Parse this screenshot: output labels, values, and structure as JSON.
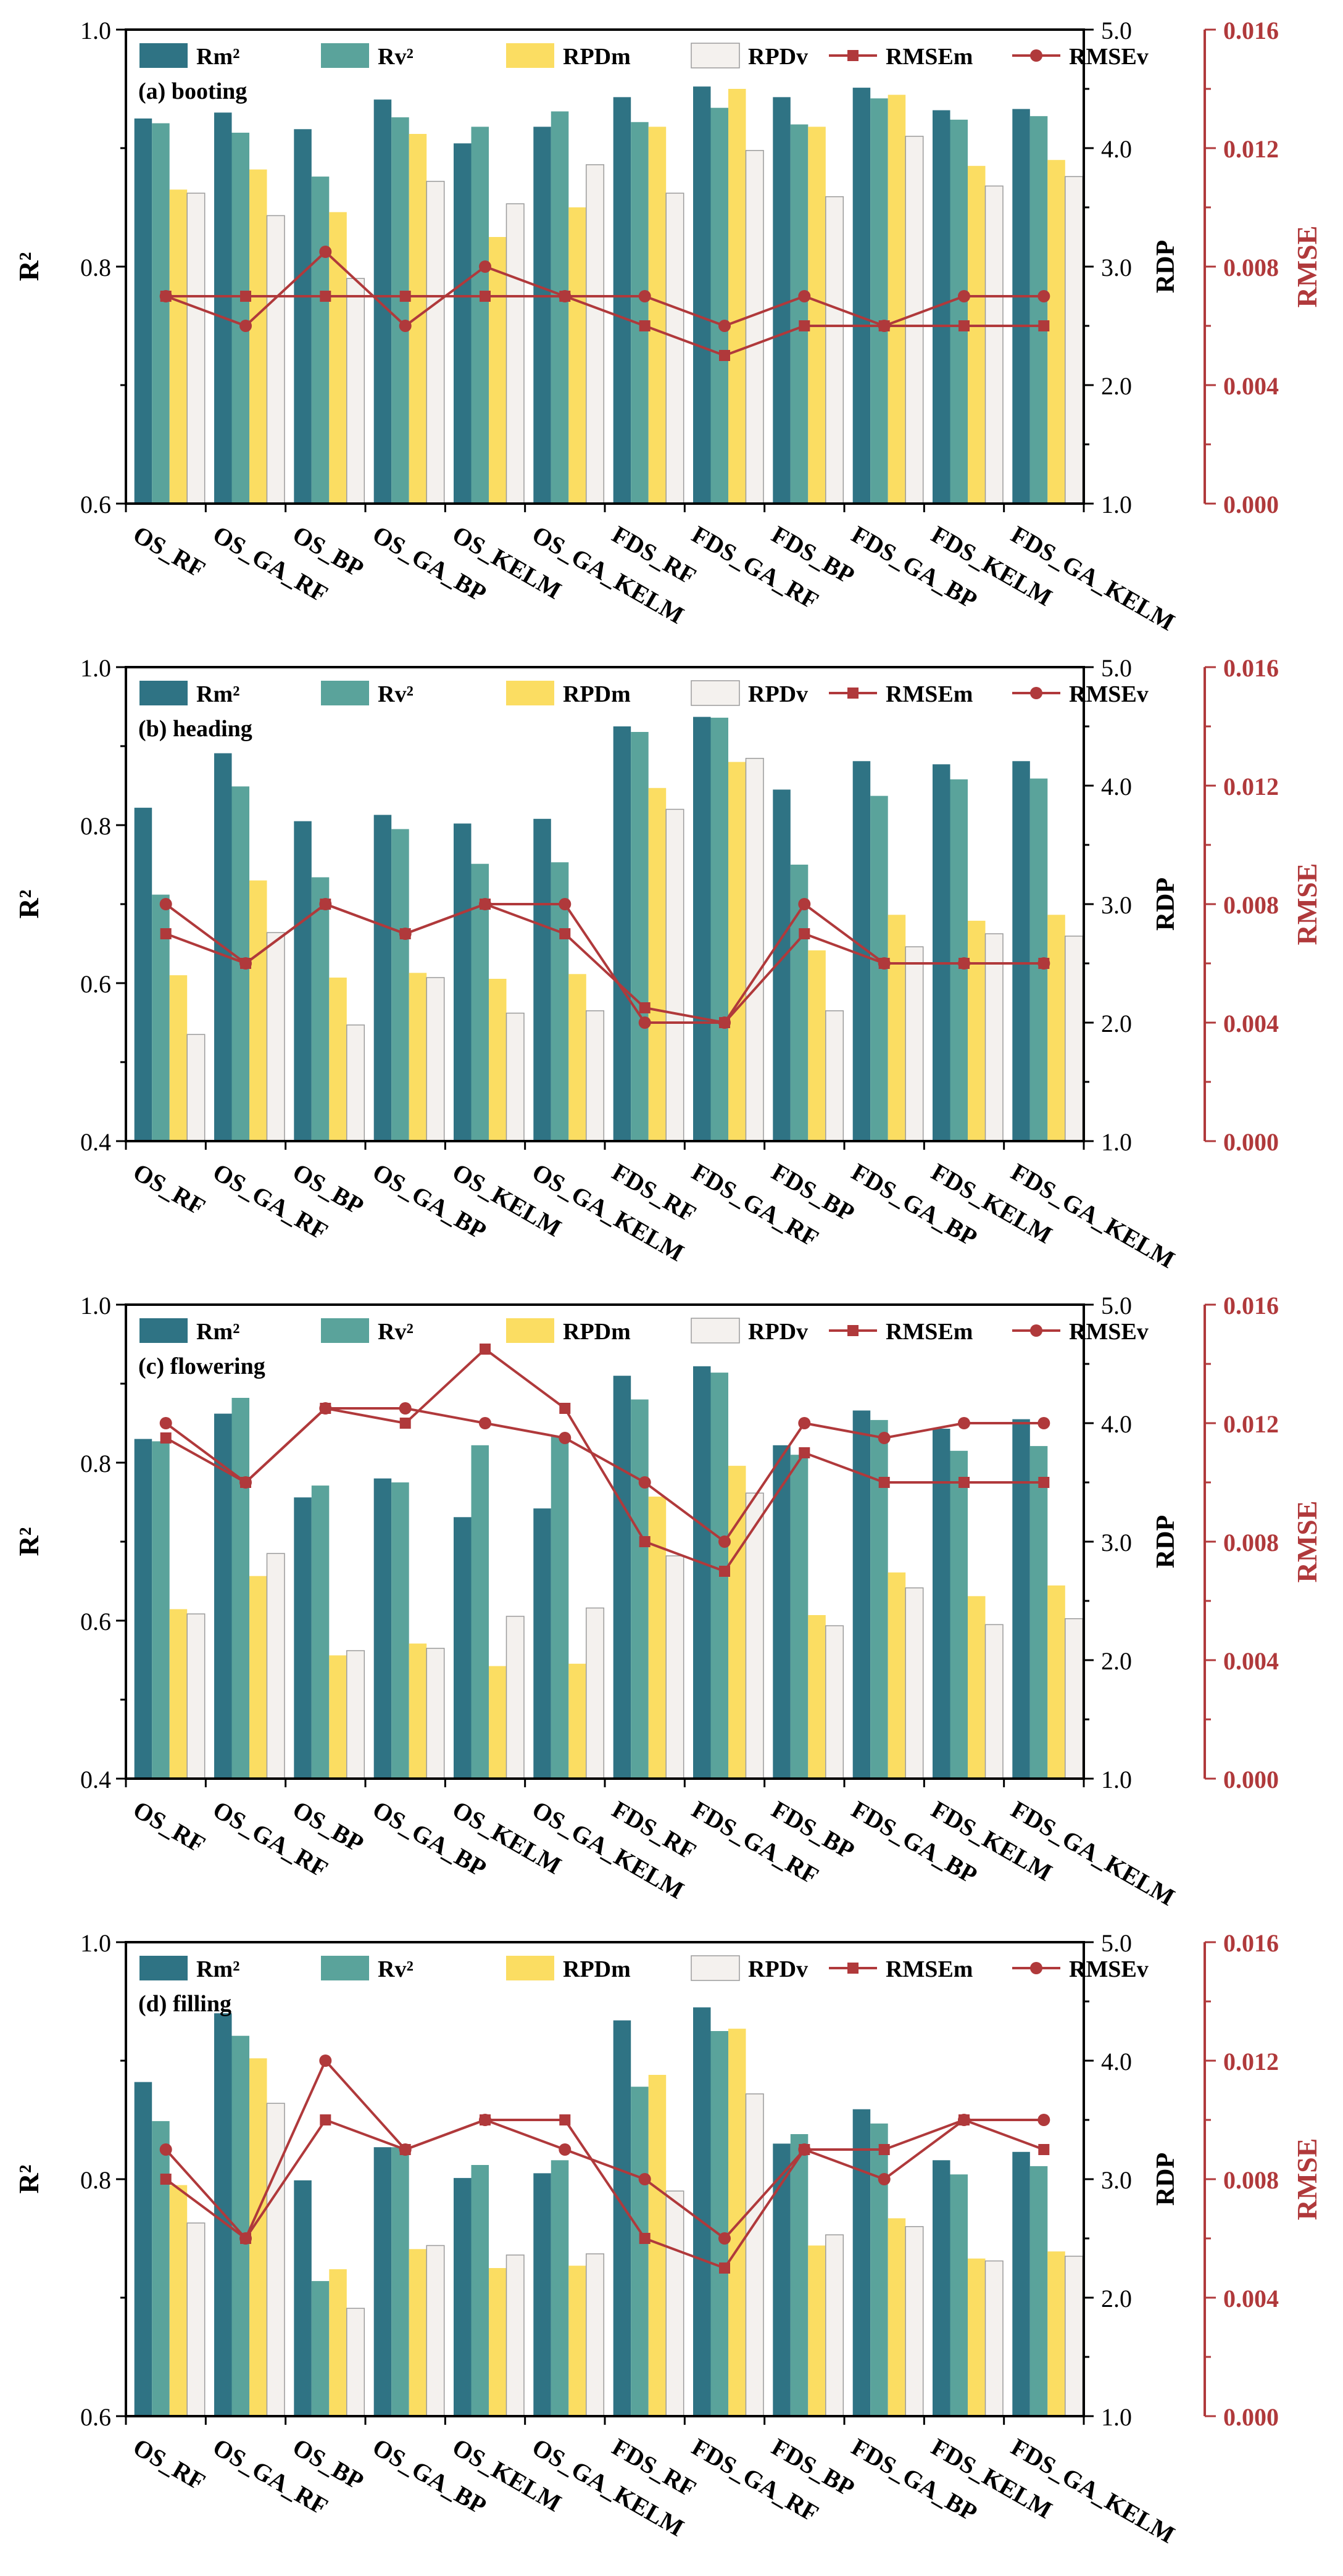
{
  "colors": {
    "rm2": "#2f7384",
    "rv2": "#5aa39b",
    "rpdm": "#fbdd62",
    "rpdv": "#f4f1ee",
    "rpdv_stroke": "#9b9b9b",
    "rmse": "#b0393b",
    "axis": "#000000"
  },
  "legend": {
    "rm2": "Rm²",
    "rv2": "Rv²",
    "rpdm": "RPDm",
    "rpdv": "RPDv",
    "rmsem": "RMSEm",
    "rmsev": "RMSEv"
  },
  "chart_data": [
    {
      "type": "bar",
      "title": "(a) booting",
      "ylabel": "R²",
      "y2label": "RDP",
      "y3label": "RMSE",
      "ylim": [
        0.6,
        1.0
      ],
      "yticks": [
        "0.6",
        "0.8",
        "1.0"
      ],
      "y2lim": [
        1.0,
        5.0
      ],
      "y2ticks": [
        "1.0",
        "2.0",
        "3.0",
        "4.0",
        "5.0"
      ],
      "y3lim": [
        0.0,
        0.016
      ],
      "y3ticks": [
        "0.000",
        "0.004",
        "0.008",
        "0.012",
        "0.016"
      ],
      "categories": [
        "OS_RF",
        "OS_GA_RF",
        "OS_BP",
        "OS_GA_BP",
        "OS_KELM",
        "OS_GA_KELM",
        "FDS_RF",
        "FDS_GA_RF",
        "FDS_BP",
        "FDS_GA_BP",
        "FDS_KELM",
        "FDS_GA_KELM"
      ],
      "series": [
        {
          "name": "Rm²",
          "axis": "left",
          "values": [
            0.925,
            0.93,
            0.916,
            0.941,
            0.904,
            0.918,
            0.943,
            0.952,
            0.943,
            0.951,
            0.932,
            0.933
          ]
        },
        {
          "name": "Rv²",
          "axis": "left",
          "values": [
            0.921,
            0.913,
            0.876,
            0.926,
            0.918,
            0.931,
            0.922,
            0.934,
            0.92,
            0.942,
            0.924,
            0.927
          ]
        },
        {
          "name": "RPDm",
          "axis": "right",
          "values": [
            3.65,
            3.82,
            3.46,
            4.12,
            3.25,
            3.5,
            4.18,
            4.5,
            4.18,
            4.45,
            3.85,
            3.9
          ]
        },
        {
          "name": "RPDv",
          "axis": "right",
          "values": [
            3.62,
            3.43,
            2.9,
            3.72,
            3.53,
            3.86,
            3.62,
            3.98,
            3.59,
            4.1,
            3.68,
            3.76
          ]
        },
        {
          "name": "RMSEm",
          "axis": "rmse",
          "values": [
            0.007,
            0.007,
            0.007,
            0.007,
            0.007,
            0.007,
            0.006,
            0.005,
            0.006,
            0.006,
            0.006,
            0.006
          ]
        },
        {
          "name": "RMSEv",
          "axis": "rmse",
          "values": [
            0.007,
            0.006,
            0.0085,
            0.006,
            0.008,
            0.007,
            0.007,
            0.006,
            0.007,
            0.006,
            0.007,
            0.007
          ]
        }
      ]
    },
    {
      "type": "bar",
      "title": "(b) heading",
      "ylabel": "R²",
      "y2label": "RDP",
      "y3label": "RMSE",
      "ylim": [
        0.4,
        1.0
      ],
      "yticks": [
        "0.4",
        "0.6",
        "0.8",
        "1.0"
      ],
      "y2lim": [
        1.0,
        5.0
      ],
      "y2ticks": [
        "1.0",
        "2.0",
        "3.0",
        "4.0",
        "5.0"
      ],
      "y3lim": [
        0.0,
        0.016
      ],
      "y3ticks": [
        "0.000",
        "0.004",
        "0.008",
        "0.012",
        "0.016"
      ],
      "categories": [
        "OS_RF",
        "OS_GA_RF",
        "OS_BP",
        "OS_GA_BP",
        "OS_KELM",
        "OS_GA_KELM",
        "FDS_RF",
        "FDS_GA_RF",
        "FDS_BP",
        "FDS_GA_BP",
        "FDS_KELM",
        "FDS_GA_KELM"
      ],
      "series": [
        {
          "name": "Rm²",
          "axis": "left",
          "values": [
            0.822,
            0.891,
            0.805,
            0.813,
            0.802,
            0.808,
            0.925,
            0.937,
            0.845,
            0.881,
            0.877,
            0.881
          ]
        },
        {
          "name": "Rv²",
          "axis": "left",
          "values": [
            0.712,
            0.849,
            0.734,
            0.795,
            0.751,
            0.753,
            0.918,
            0.936,
            0.75,
            0.837,
            0.858,
            0.859
          ]
        },
        {
          "name": "RPDm",
          "axis": "right",
          "values": [
            2.4,
            3.2,
            2.38,
            2.42,
            2.37,
            2.41,
            3.98,
            4.2,
            2.61,
            2.91,
            2.86,
            2.91
          ]
        },
        {
          "name": "RPDv",
          "axis": "right",
          "values": [
            1.9,
            2.76,
            1.98,
            2.38,
            2.08,
            2.1,
            3.8,
            4.23,
            2.1,
            2.64,
            2.75,
            2.73
          ]
        },
        {
          "name": "RMSEm",
          "axis": "rmse",
          "values": [
            0.007,
            0.006,
            0.008,
            0.007,
            0.008,
            0.007,
            0.0045,
            0.004,
            0.007,
            0.006,
            0.006,
            0.006
          ]
        },
        {
          "name": "RMSEv",
          "axis": "rmse",
          "values": [
            0.008,
            0.006,
            0.008,
            0.007,
            0.008,
            0.008,
            0.004,
            0.004,
            0.008,
            0.006,
            0.006,
            0.006
          ]
        }
      ]
    },
    {
      "type": "bar",
      "title": "(c) flowering",
      "ylabel": "R²",
      "y2label": "RDP",
      "y3label": "RMSE",
      "ylim": [
        0.4,
        1.0
      ],
      "yticks": [
        "0.4",
        "0.6",
        "0.8",
        "1.0"
      ],
      "y2lim": [
        1.0,
        5.0
      ],
      "y2ticks": [
        "1.0",
        "2.0",
        "3.0",
        "4.0",
        "5.0"
      ],
      "y3lim": [
        0.0,
        0.016
      ],
      "y3ticks": [
        "0.000",
        "0.004",
        "0.008",
        "0.012",
        "0.016"
      ],
      "categories": [
        "OS_RF",
        "OS_GA_RF",
        "OS_BP",
        "OS_GA_BP",
        "OS_KELM",
        "OS_GA_KELM",
        "FDS_RF",
        "FDS_GA_RF",
        "FDS_BP",
        "FDS_GA_BP",
        "FDS_KELM",
        "FDS_GA_KELM"
      ],
      "series": [
        {
          "name": "Rm²",
          "axis": "left",
          "values": [
            0.83,
            0.862,
            0.756,
            0.78,
            0.731,
            0.742,
            0.91,
            0.922,
            0.822,
            0.866,
            0.843,
            0.855
          ]
        },
        {
          "name": "Rv²",
          "axis": "left",
          "values": [
            0.827,
            0.882,
            0.771,
            0.775,
            0.822,
            0.833,
            0.88,
            0.914,
            0.81,
            0.854,
            0.815,
            0.821
          ]
        },
        {
          "name": "RPDm",
          "axis": "right",
          "values": [
            2.43,
            2.71,
            2.04,
            2.14,
            1.95,
            1.97,
            3.38,
            3.64,
            2.38,
            2.74,
            2.54,
            2.63
          ]
        },
        {
          "name": "RPDv",
          "axis": "right",
          "values": [
            2.39,
            2.9,
            2.08,
            2.1,
            2.37,
            2.44,
            2.88,
            3.41,
            2.29,
            2.61,
            2.3,
            2.35
          ]
        },
        {
          "name": "RMSEm",
          "axis": "rmse",
          "values": [
            0.0115,
            0.01,
            0.0125,
            0.012,
            0.0145,
            0.0125,
            0.008,
            0.007,
            0.011,
            0.01,
            0.01,
            0.01
          ]
        },
        {
          "name": "RMSEv",
          "axis": "rmse",
          "values": [
            0.012,
            0.01,
            0.0125,
            0.0125,
            0.012,
            0.0115,
            0.01,
            0.008,
            0.012,
            0.0115,
            0.012,
            0.012
          ]
        }
      ]
    },
    {
      "type": "bar",
      "title": "(d) filling",
      "ylabel": "R²",
      "y2label": "RDP",
      "y3label": "RMSE",
      "ylim": [
        0.6,
        1.0
      ],
      "yticks": [
        "0.6",
        "0.8",
        "1.0"
      ],
      "y2lim": [
        1.0,
        5.0
      ],
      "y2ticks": [
        "1.0",
        "2.0",
        "3.0",
        "4.0",
        "5.0"
      ],
      "y3lim": [
        0.0,
        0.016
      ],
      "y3ticks": [
        "0.000",
        "0.004",
        "0.008",
        "0.012",
        "0.016"
      ],
      "categories": [
        "OS_RF",
        "OS_GA_RF",
        "OS_BP",
        "OS_GA_BP",
        "OS_KELM",
        "OS_GA_KELM",
        "FDS_RF",
        "FDS_GA_RF",
        "FDS_BP",
        "FDS_GA_BP",
        "FDS_KELM",
        "FDS_GA_KELM"
      ],
      "series": [
        {
          "name": "Rm²",
          "axis": "left",
          "values": [
            0.882,
            0.94,
            0.799,
            0.827,
            0.801,
            0.805,
            0.934,
            0.945,
            0.83,
            0.859,
            0.816,
            0.823
          ]
        },
        {
          "name": "Rv²",
          "axis": "left",
          "values": [
            0.849,
            0.921,
            0.714,
            0.827,
            0.812,
            0.816,
            0.878,
            0.925,
            0.838,
            0.847,
            0.804,
            0.811
          ]
        },
        {
          "name": "RPDm",
          "axis": "right",
          "values": [
            2.95,
            4.02,
            2.24,
            2.41,
            2.25,
            2.27,
            3.88,
            4.27,
            2.44,
            2.67,
            2.33,
            2.39
          ]
        },
        {
          "name": "RPDv",
          "axis": "right",
          "values": [
            2.63,
            3.64,
            1.91,
            2.44,
            2.36,
            2.37,
            2.9,
            3.72,
            2.53,
            2.6,
            2.31,
            2.35
          ]
        },
        {
          "name": "RMSEm",
          "axis": "rmse",
          "values": [
            0.008,
            0.006,
            0.01,
            0.009,
            0.01,
            0.01,
            0.006,
            0.005,
            0.009,
            0.009,
            0.01,
            0.009
          ]
        },
        {
          "name": "RMSEv",
          "axis": "rmse",
          "values": [
            0.009,
            0.006,
            0.012,
            0.009,
            0.01,
            0.009,
            0.008,
            0.006,
            0.009,
            0.008,
            0.01,
            0.01
          ]
        }
      ]
    }
  ]
}
